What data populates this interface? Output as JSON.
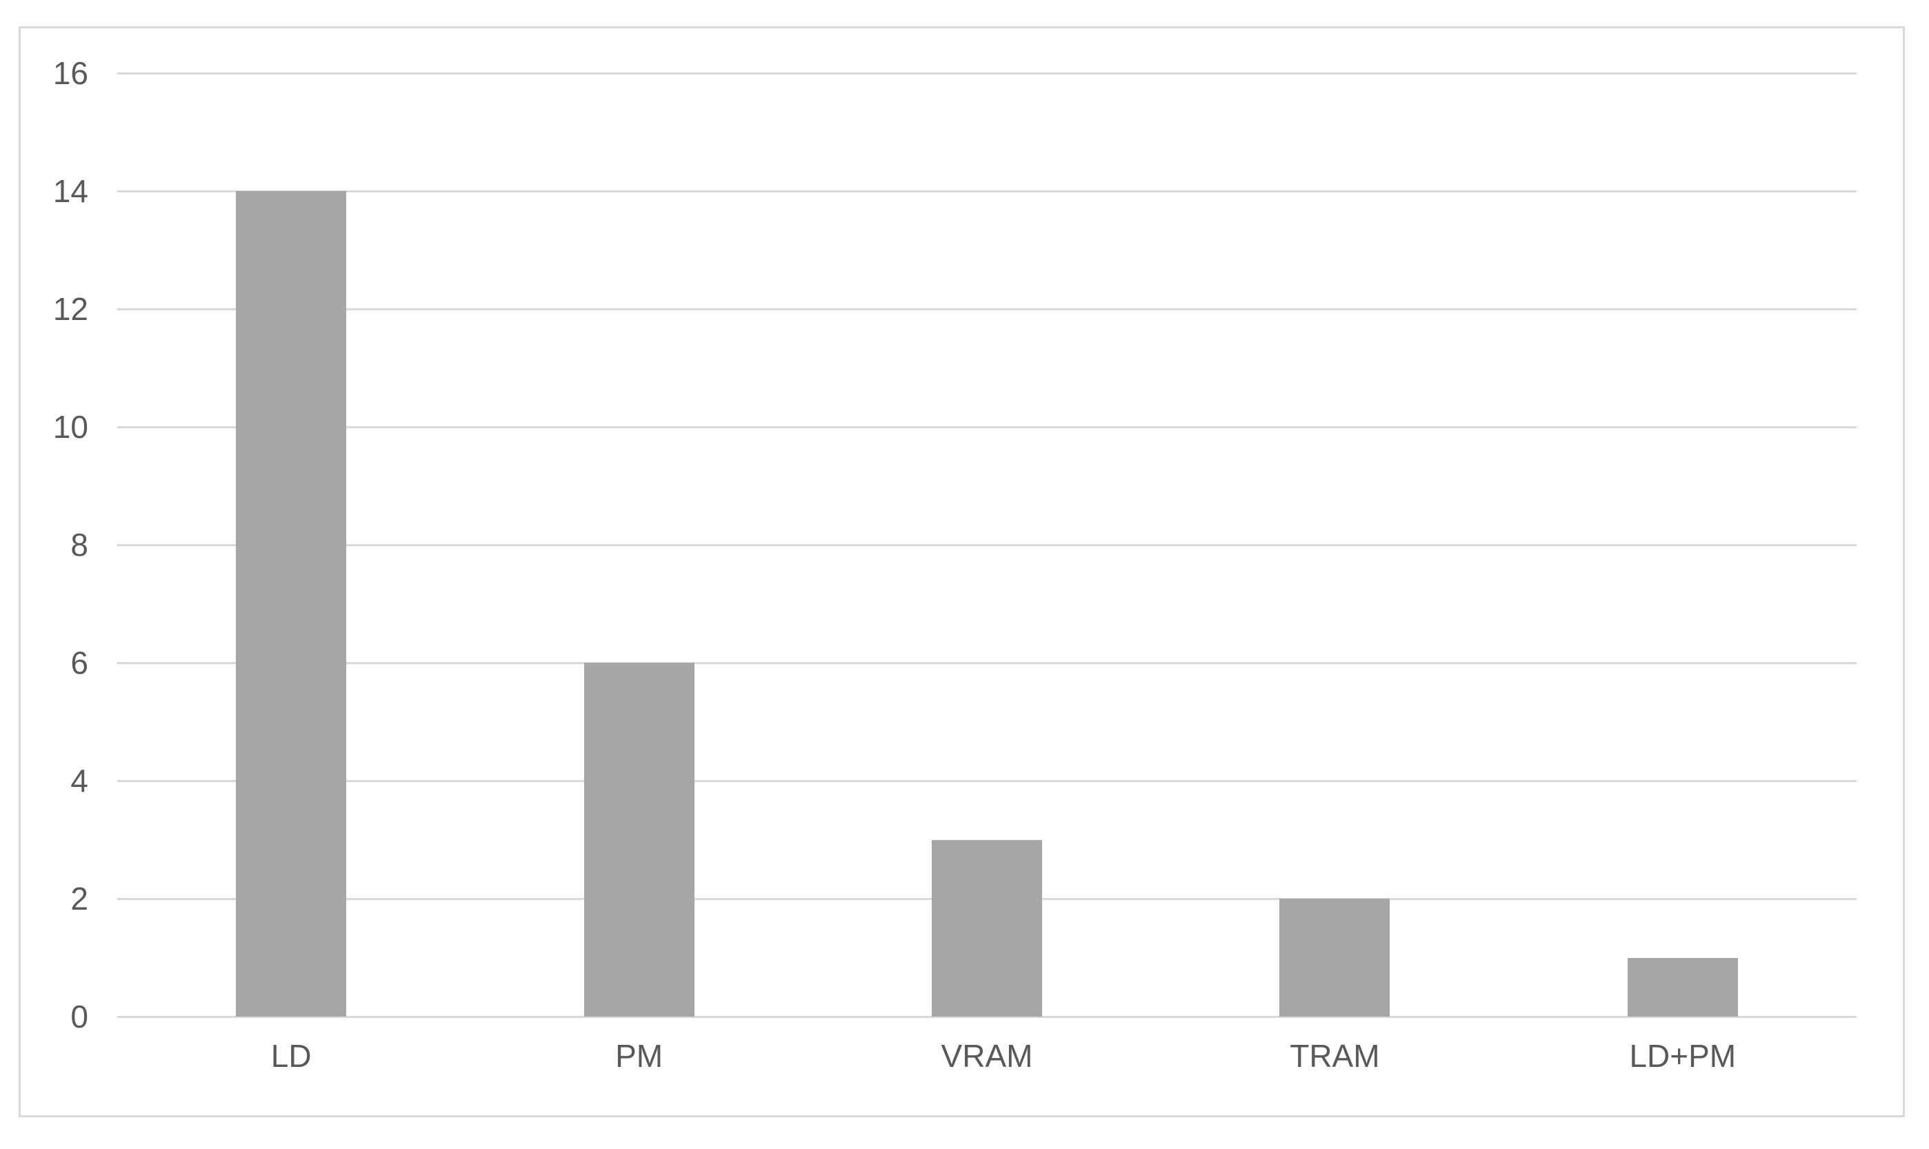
{
  "chart_data": {
    "type": "bar",
    "title": "",
    "xlabel": "",
    "ylabel": "",
    "categories": [
      "LD",
      "PM",
      "VRAM",
      "TRAM",
      "LD+PM"
    ],
    "values": [
      14,
      6,
      3,
      2,
      1
    ],
    "ylim": [
      0,
      16
    ],
    "yticks": [
      0,
      2,
      4,
      6,
      8,
      10,
      12,
      14,
      16
    ],
    "grid": true,
    "legend": "none",
    "colors": {
      "bar_fill": "#a6a6a6",
      "gridline": "#d9d9d9",
      "frame_border": "#d9d9d9",
      "axis_text": "#595959",
      "background": "#ffffff"
    }
  }
}
